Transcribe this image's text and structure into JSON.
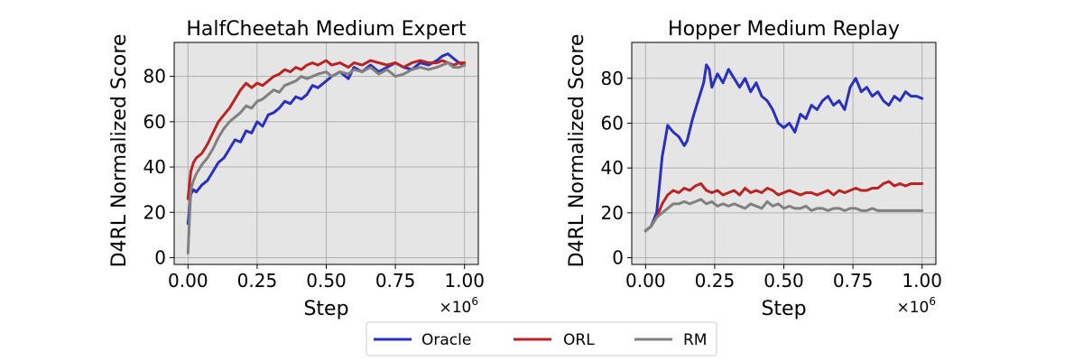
{
  "chart_data": [
    {
      "type": "line",
      "title": "HalfCheetah Medium Expert",
      "xlabel": "Step",
      "ylabel": "D4RL Normalized Score",
      "x_multiplier_label": "×10",
      "x_multiplier_exponent": "6",
      "xlim": [
        -0.05,
        1.05
      ],
      "ylim": [
        -3,
        95
      ],
      "xticks": [
        0.0,
        0.25,
        0.5,
        0.75,
        1.0
      ],
      "xtick_labels": [
        "0.00",
        "0.25",
        "0.50",
        "0.75",
        "1.00"
      ],
      "yticks": [
        0,
        20,
        40,
        60,
        80
      ],
      "ytick_labels": [
        "0",
        "20",
        "40",
        "60",
        "80"
      ],
      "grid": true,
      "background": "#e5e5e5",
      "series": [
        {
          "name": "Oracle",
          "color": "#2a2fbd",
          "x": [
            0.0,
            0.01,
            0.02,
            0.03,
            0.05,
            0.07,
            0.09,
            0.11,
            0.13,
            0.15,
            0.17,
            0.19,
            0.21,
            0.23,
            0.25,
            0.27,
            0.29,
            0.31,
            0.33,
            0.35,
            0.37,
            0.39,
            0.41,
            0.43,
            0.45,
            0.47,
            0.5,
            0.52,
            0.55,
            0.58,
            0.6,
            0.63,
            0.66,
            0.69,
            0.72,
            0.75,
            0.78,
            0.81,
            0.84,
            0.87,
            0.9,
            0.92,
            0.94,
            0.96,
            0.98,
            1.0
          ],
          "y": [
            15,
            28,
            30,
            29,
            32,
            34,
            38,
            42,
            44,
            48,
            52,
            51,
            56,
            55,
            60,
            58,
            63,
            64,
            66,
            69,
            68,
            71,
            70,
            72,
            76,
            75,
            78,
            80,
            82,
            79,
            84,
            82,
            85,
            82,
            84,
            86,
            84,
            83,
            86,
            85,
            87,
            89,
            90,
            88,
            86,
            85
          ]
        },
        {
          "name": "ORL",
          "color": "#bb2222",
          "x": [
            0.0,
            0.01,
            0.02,
            0.03,
            0.05,
            0.07,
            0.09,
            0.11,
            0.13,
            0.15,
            0.17,
            0.19,
            0.21,
            0.23,
            0.25,
            0.27,
            0.29,
            0.31,
            0.33,
            0.35,
            0.37,
            0.39,
            0.41,
            0.43,
            0.45,
            0.47,
            0.5,
            0.52,
            0.55,
            0.58,
            0.6,
            0.63,
            0.66,
            0.69,
            0.72,
            0.75,
            0.78,
            0.81,
            0.84,
            0.87,
            0.9,
            0.92,
            0.94,
            0.96,
            0.98,
            1.0
          ],
          "y": [
            26,
            38,
            42,
            44,
            46,
            50,
            55,
            60,
            63,
            66,
            70,
            74,
            77,
            75,
            77,
            76,
            78,
            80,
            81,
            83,
            82,
            84,
            83,
            85,
            86,
            85,
            87,
            85,
            86,
            84,
            86,
            85,
            87,
            86,
            85,
            86,
            84,
            86,
            87,
            86,
            86,
            87,
            86,
            85,
            86,
            86
          ]
        },
        {
          "name": "RM",
          "color": "#808080",
          "x": [
            0.0,
            0.01,
            0.02,
            0.03,
            0.05,
            0.07,
            0.09,
            0.11,
            0.13,
            0.15,
            0.17,
            0.19,
            0.21,
            0.23,
            0.25,
            0.27,
            0.29,
            0.31,
            0.33,
            0.35,
            0.37,
            0.39,
            0.41,
            0.43,
            0.45,
            0.47,
            0.5,
            0.52,
            0.55,
            0.58,
            0.6,
            0.63,
            0.66,
            0.69,
            0.72,
            0.75,
            0.78,
            0.81,
            0.84,
            0.87,
            0.9,
            0.92,
            0.94,
            0.96,
            0.98,
            1.0
          ],
          "y": [
            2,
            30,
            34,
            37,
            41,
            44,
            48,
            53,
            57,
            60,
            62,
            64,
            67,
            66,
            69,
            70,
            72,
            74,
            73,
            76,
            77,
            78,
            80,
            79,
            80,
            81,
            82,
            80,
            82,
            81,
            83,
            82,
            84,
            81,
            83,
            80,
            81,
            83,
            84,
            83,
            84,
            85,
            86,
            84,
            84,
            85
          ]
        }
      ]
    },
    {
      "type": "line",
      "title": "Hopper Medium Replay",
      "xlabel": "Step",
      "ylabel": "D4RL Normalized Score",
      "x_multiplier_label": "×10",
      "x_multiplier_exponent": "6",
      "xlim": [
        -0.05,
        1.05
      ],
      "ylim": [
        -3,
        96
      ],
      "xticks": [
        0.0,
        0.25,
        0.5,
        0.75,
        1.0
      ],
      "xtick_labels": [
        "0.00",
        "0.25",
        "0.50",
        "0.75",
        "1.00"
      ],
      "yticks": [
        0,
        20,
        40,
        60,
        80
      ],
      "ytick_labels": [
        "0",
        "20",
        "40",
        "60",
        "80"
      ],
      "grid": true,
      "background": "#e5e5e5",
      "series": [
        {
          "name": "Oracle",
          "color": "#2a2fbd",
          "x": [
            0.0,
            0.02,
            0.04,
            0.05,
            0.06,
            0.07,
            0.08,
            0.1,
            0.12,
            0.14,
            0.15,
            0.17,
            0.19,
            0.21,
            0.22,
            0.23,
            0.24,
            0.26,
            0.28,
            0.3,
            0.32,
            0.34,
            0.36,
            0.38,
            0.4,
            0.42,
            0.44,
            0.46,
            0.48,
            0.5,
            0.52,
            0.54,
            0.56,
            0.58,
            0.6,
            0.62,
            0.64,
            0.66,
            0.68,
            0.7,
            0.72,
            0.74,
            0.76,
            0.78,
            0.8,
            0.82,
            0.84,
            0.86,
            0.88,
            0.9,
            0.92,
            0.94,
            0.96,
            0.98,
            1.0
          ],
          "y": [
            12,
            14,
            20,
            32,
            45,
            52,
            59,
            56,
            54,
            50,
            52,
            62,
            70,
            78,
            86,
            84,
            76,
            82,
            78,
            84,
            80,
            76,
            80,
            74,
            78,
            72,
            70,
            66,
            60,
            58,
            60,
            56,
            64,
            62,
            68,
            66,
            70,
            72,
            68,
            70,
            66,
            76,
            80,
            74,
            76,
            72,
            74,
            70,
            68,
            72,
            70,
            74,
            72,
            72,
            71
          ]
        },
        {
          "name": "ORL",
          "color": "#bb2222",
          "x": [
            0.0,
            0.02,
            0.04,
            0.06,
            0.08,
            0.1,
            0.12,
            0.14,
            0.16,
            0.18,
            0.2,
            0.22,
            0.24,
            0.26,
            0.28,
            0.3,
            0.32,
            0.34,
            0.36,
            0.38,
            0.4,
            0.42,
            0.44,
            0.46,
            0.48,
            0.5,
            0.52,
            0.54,
            0.56,
            0.58,
            0.6,
            0.62,
            0.64,
            0.66,
            0.68,
            0.7,
            0.72,
            0.74,
            0.76,
            0.78,
            0.8,
            0.82,
            0.84,
            0.86,
            0.88,
            0.9,
            0.92,
            0.94,
            0.96,
            0.98,
            1.0
          ],
          "y": [
            12,
            14,
            18,
            24,
            28,
            30,
            29,
            31,
            30,
            32,
            33,
            30,
            29,
            30,
            28,
            29,
            30,
            28,
            31,
            29,
            30,
            29,
            31,
            30,
            28,
            29,
            30,
            29,
            28,
            29,
            29,
            28,
            29,
            30,
            28,
            30,
            29,
            30,
            31,
            30,
            30,
            31,
            31,
            33,
            34,
            32,
            33,
            32,
            33,
            33,
            33
          ]
        },
        {
          "name": "RM",
          "color": "#808080",
          "x": [
            0.0,
            0.02,
            0.04,
            0.06,
            0.08,
            0.1,
            0.12,
            0.14,
            0.16,
            0.18,
            0.2,
            0.22,
            0.24,
            0.26,
            0.28,
            0.3,
            0.32,
            0.34,
            0.36,
            0.38,
            0.4,
            0.42,
            0.44,
            0.46,
            0.48,
            0.5,
            0.52,
            0.54,
            0.56,
            0.58,
            0.6,
            0.62,
            0.64,
            0.66,
            0.68,
            0.7,
            0.72,
            0.74,
            0.76,
            0.78,
            0.8,
            0.82,
            0.84,
            0.86,
            0.88,
            0.9,
            0.92,
            0.94,
            0.96,
            0.98,
            1.0
          ],
          "y": [
            12,
            14,
            18,
            20,
            22,
            24,
            24,
            25,
            24,
            25,
            26,
            24,
            25,
            23,
            24,
            23,
            24,
            23,
            22,
            24,
            23,
            22,
            25,
            23,
            24,
            22,
            23,
            22,
            22,
            23,
            21,
            22,
            22,
            21,
            22,
            22,
            21,
            22,
            22,
            21,
            21,
            22,
            21,
            21,
            21,
            21,
            21,
            21,
            21,
            21,
            21
          ]
        }
      ]
    }
  ],
  "legend": {
    "placement": "bottom-center",
    "items": [
      {
        "label": "Oracle",
        "color": "#2a2fbd"
      },
      {
        "label": "ORL",
        "color": "#bb2222"
      },
      {
        "label": "RM",
        "color": "#808080"
      }
    ]
  }
}
